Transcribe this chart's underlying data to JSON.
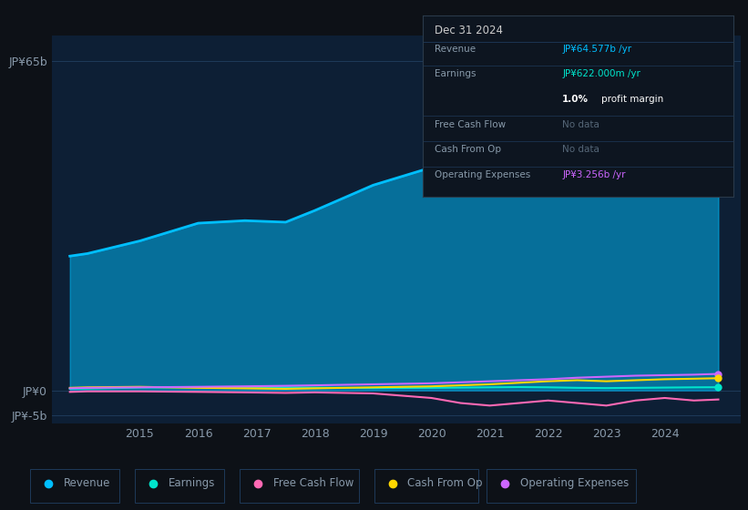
{
  "background_color": "#0d1117",
  "plot_bg_color": "#0d1f35",
  "years": [
    2013.8,
    2014.1,
    2015.0,
    2016.0,
    2016.8,
    2017.5,
    2018.0,
    2018.5,
    2019.0,
    2020.0,
    2020.5,
    2021.0,
    2021.5,
    2022.0,
    2022.5,
    2023.0,
    2023.5,
    2024.0,
    2024.5,
    2024.92
  ],
  "revenue": [
    26.5,
    27.0,
    29.5,
    33.0,
    33.5,
    33.2,
    35.5,
    38.0,
    40.5,
    44.0,
    46.5,
    49.0,
    51.0,
    52.5,
    55.0,
    59.0,
    61.5,
    62.5,
    63.5,
    64.577
  ],
  "earnings": [
    0.3,
    0.35,
    0.55,
    0.6,
    0.65,
    0.6,
    0.55,
    0.5,
    0.45,
    0.5,
    0.55,
    0.6,
    0.65,
    0.6,
    0.5,
    0.45,
    0.5,
    0.55,
    0.6,
    0.622
  ],
  "free_cash_flow": [
    -0.3,
    -0.2,
    -0.2,
    -0.3,
    -0.4,
    -0.5,
    -0.4,
    -0.5,
    -0.6,
    -1.5,
    -2.5,
    -3.0,
    -2.5,
    -2.0,
    -2.5,
    -3.0,
    -2.0,
    -1.5,
    -2.0,
    -1.8
  ],
  "cash_from_op": [
    0.5,
    0.6,
    0.7,
    0.5,
    0.4,
    0.3,
    0.4,
    0.5,
    0.6,
    0.8,
    1.0,
    1.2,
    1.5,
    1.8,
    2.0,
    1.8,
    2.0,
    2.2,
    2.3,
    2.4
  ],
  "operating_expenses": [
    0.4,
    0.5,
    0.6,
    0.7,
    0.8,
    0.9,
    1.0,
    1.1,
    1.2,
    1.4,
    1.6,
    1.8,
    2.0,
    2.2,
    2.5,
    2.7,
    2.9,
    3.0,
    3.1,
    3.256
  ],
  "revenue_color": "#00bfff",
  "earnings_color": "#00e5cc",
  "free_cash_flow_color": "#ff69b4",
  "cash_from_op_color": "#ffd700",
  "operating_expenses_color": "#cc66ff",
  "ylim": [
    -6.5,
    70
  ],
  "xlim": [
    2013.5,
    2025.3
  ],
  "ytick_positions": [
    -5,
    0,
    65
  ],
  "ytick_labels": [
    "JP¥-5b",
    "JP¥0",
    "JP¥65b"
  ],
  "xtick_positions": [
    2015,
    2016,
    2017,
    2018,
    2019,
    2020,
    2021,
    2022,
    2023,
    2024
  ],
  "grid_color": "#1e3a5a",
  "label_color": "#8899aa",
  "fill_alpha": 0.5,
  "info_box": {
    "title": "Dec 31 2024",
    "bg_color": "#0d1520",
    "border_color": "#2a3a4a",
    "title_color": "#cccccc",
    "label_color": "#889aaa",
    "row_divider_color": "#1e3050",
    "rows": [
      {
        "label": "Revenue",
        "value": "JP¥64.577b /yr",
        "value_color": "#00bfff",
        "nodata": false
      },
      {
        "label": "Earnings",
        "value": "JP¥622.000m /yr",
        "value_color": "#00e5cc",
        "nodata": false
      },
      {
        "label": "",
        "value": "1.0% profit margin",
        "value_color": "#ffffff",
        "nodata": false,
        "bold_part": "1.0%"
      },
      {
        "label": "Free Cash Flow",
        "value": "No data",
        "value_color": "#556677",
        "nodata": true
      },
      {
        "label": "Cash From Op",
        "value": "No data",
        "value_color": "#556677",
        "nodata": true
      },
      {
        "label": "Operating Expenses",
        "value": "JP¥3.256b /yr",
        "value_color": "#cc66ff",
        "nodata": false
      }
    ]
  },
  "legend_items": [
    {
      "label": "Revenue",
      "color": "#00bfff"
    },
    {
      "label": "Earnings",
      "color": "#00e5cc"
    },
    {
      "label": "Free Cash Flow",
      "color": "#ff69b4"
    },
    {
      "label": "Cash From Op",
      "color": "#ffd700"
    },
    {
      "label": "Operating Expenses",
      "color": "#cc66ff"
    }
  ]
}
